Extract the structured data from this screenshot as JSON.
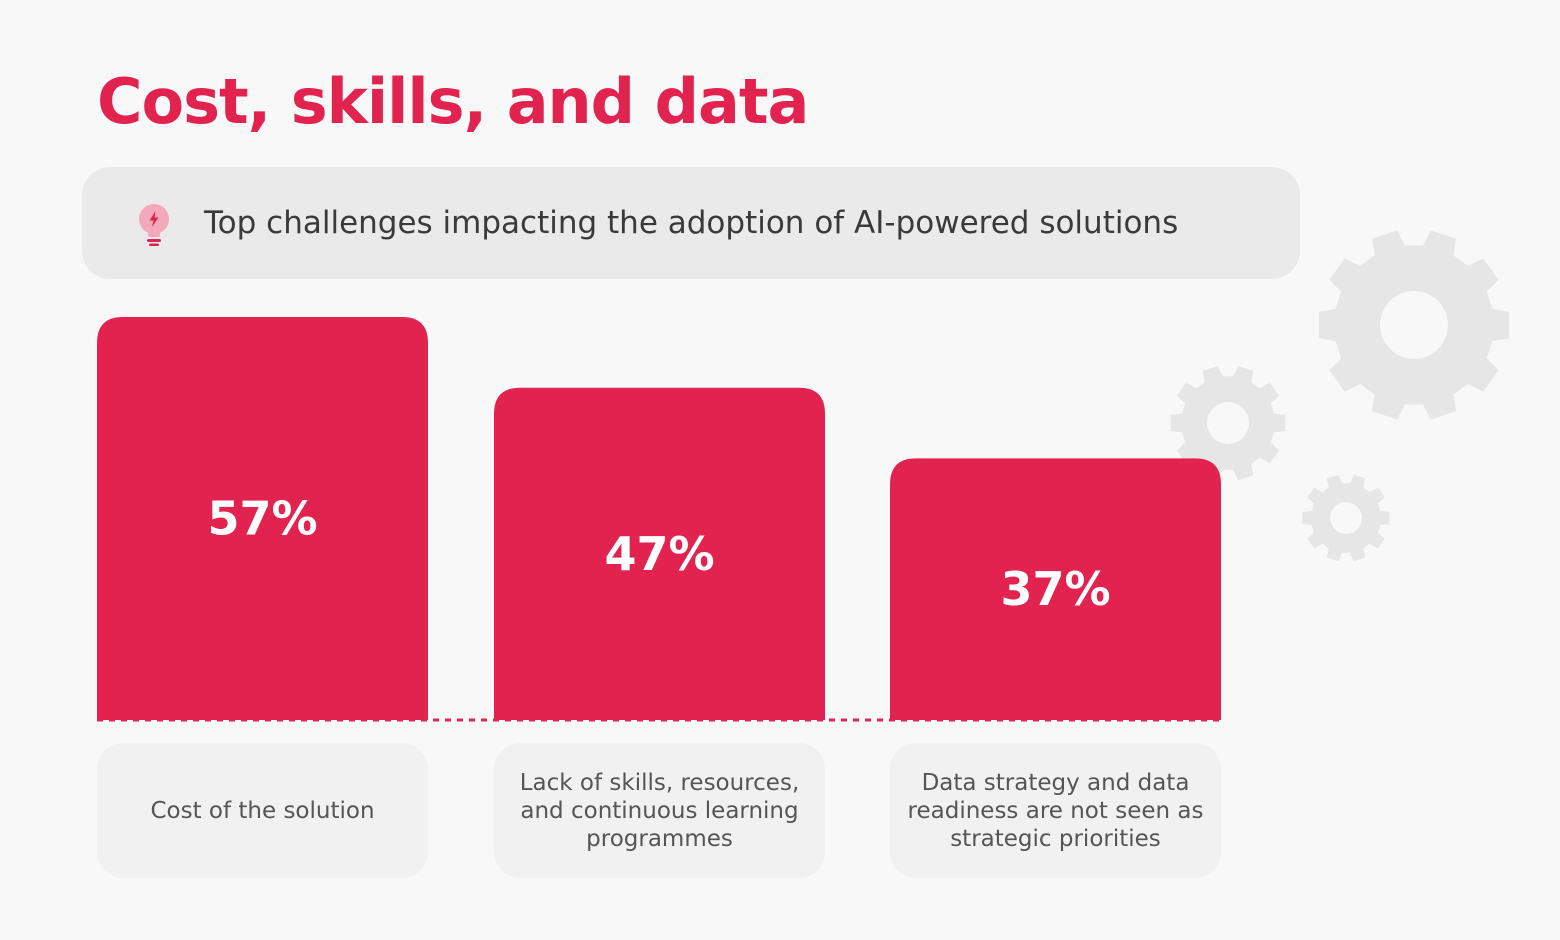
{
  "title": "Cost, skills, and data",
  "subtitle": {
    "text": "Top challenges impacting the adoption of AI-powered solutions",
    "icon": "lightbulb-icon"
  },
  "colors": {
    "accent": "#e2234f",
    "label_box": "#f1f1f1",
    "gear": "#e6e6e6",
    "background": "#f8f8f8"
  },
  "chart_data": {
    "type": "bar",
    "title": "Top challenges impacting the adoption of AI-powered solutions",
    "categories": [
      "Cost of the solution",
      "Lack of skills, resources, and continuous learning programmes",
      "Data strategy and data readiness are not seen as strategic priorities"
    ],
    "values": [
      57,
      47,
      37
    ],
    "value_labels": [
      "57%",
      "47%",
      "37%"
    ],
    "unit": "%",
    "xlabel": "",
    "ylabel": "",
    "ylim": [
      0,
      57
    ],
    "grid": false,
    "legend": "none"
  }
}
